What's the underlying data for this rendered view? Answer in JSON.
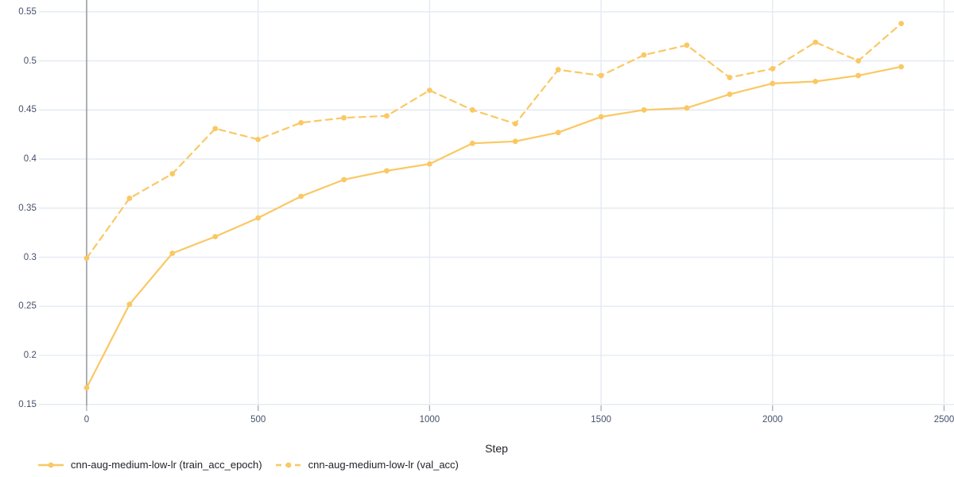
{
  "chart_data": {
    "type": "line",
    "title": "",
    "xlabel": "Step",
    "ylabel": "",
    "grid": true,
    "legend_position": "bottom-left",
    "x_ticks": [
      0,
      500,
      1000,
      1500,
      2000,
      2500
    ],
    "x_tick_labels": [
      "0",
      "500",
      "1000",
      "1500",
      "2000",
      "2500"
    ],
    "y_ticks": [
      0.15,
      0.2,
      0.25,
      0.3,
      0.35,
      0.4,
      0.45,
      0.5,
      0.55
    ],
    "y_tick_labels": [
      "0.15",
      "0.2",
      "0.25",
      "0.3",
      "0.35",
      "0.4",
      "0.45",
      "0.5",
      "0.55"
    ],
    "xlim": [
      -139,
      2529
    ],
    "ylim": [
      0.149,
      0.562
    ],
    "x": [
      0,
      125,
      250,
      375,
      500,
      625,
      750,
      875,
      1000,
      1125,
      1250,
      1375,
      1500,
      1625,
      1750,
      1875,
      2000,
      2125,
      2250,
      2375
    ],
    "series": [
      {
        "name": "cnn-aug-medium-low-lr (train_acc_epoch)",
        "line_style": "solid",
        "color": "#fac863",
        "values": [
          0.167,
          0.252,
          0.304,
          0.321,
          0.34,
          0.362,
          0.379,
          0.388,
          0.395,
          0.416,
          0.418,
          0.427,
          0.443,
          0.45,
          0.452,
          0.466,
          0.477,
          0.479,
          0.485,
          0.494
        ]
      },
      {
        "name": "cnn-aug-medium-low-lr (val_acc)",
        "line_style": "dashed",
        "color": "#fac863",
        "values": [
          0.299,
          0.36,
          0.385,
          0.431,
          0.42,
          0.437,
          0.442,
          0.444,
          0.47,
          0.45,
          0.436,
          0.491,
          0.485,
          0.506,
          0.516,
          0.483,
          0.492,
          0.519,
          0.5,
          0.538
        ]
      }
    ]
  },
  "colors": {
    "series": "#fac863",
    "grid": "#e2e9f1",
    "zero_line": "#999ca2",
    "tick_mark": "#a7adb6",
    "tick_text": "#44506a",
    "text": "#1d2127",
    "background": "#ffffff"
  }
}
